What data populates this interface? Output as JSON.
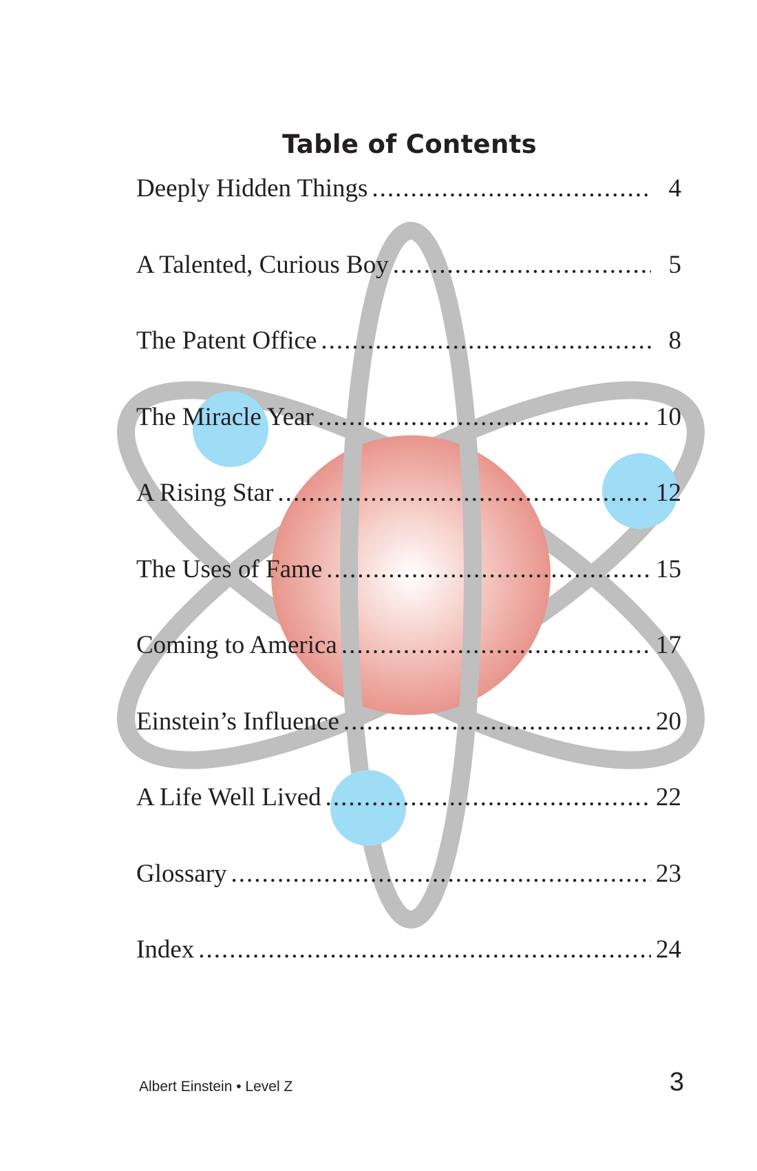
{
  "title": "Table of Contents",
  "entries": [
    {
      "title": "Deeply Hidden Things",
      "page": "4"
    },
    {
      "title": "A Talented, Curious Boy",
      "page": "5"
    },
    {
      "title": "The Patent Office",
      "page": "8"
    },
    {
      "title": "The Miracle Year",
      "page": "10"
    },
    {
      "title": "A Rising Star",
      "page": "12"
    },
    {
      "title": "The Uses of Fame",
      "page": "15"
    },
    {
      "title": "Coming to America",
      "page": "17"
    },
    {
      "title": "Einstein’s Influence",
      "page": "20"
    },
    {
      "title": "A Life Well Lived",
      "page": "22"
    },
    {
      "title": "Glossary",
      "page": "23"
    },
    {
      "title": "Index",
      "page": "24"
    }
  ],
  "footer": {
    "book": "Albert Einstein • Level Z",
    "page_number": "3"
  },
  "colors": {
    "orbit": "#bfbfbf",
    "electron": "#9fdcf6",
    "nucleus_center": "#ffffff",
    "nucleus_edge": "#e8958c",
    "text": "#231f20"
  }
}
